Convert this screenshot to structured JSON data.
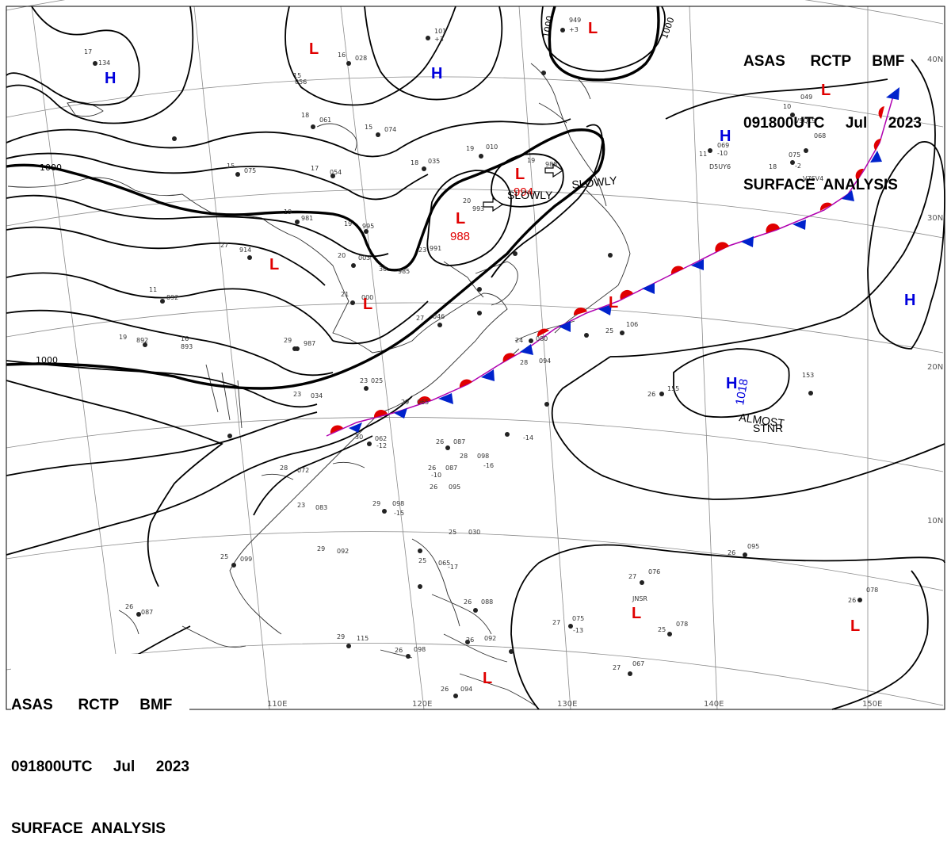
{
  "header": {
    "line1": "ASAS      RCTP     BMF",
    "line2": "091800UTC     Jul     2023",
    "line3": "SURFACE  ANALYSIS"
  },
  "grid_labels": {
    "lat": [
      "40N",
      "30N",
      "20N",
      "10N"
    ],
    "lon": [
      "110E",
      "120E",
      "130E",
      "140E",
      "150E"
    ]
  },
  "isobar_labels": [
    "1000",
    "1000",
    "1000",
    "1000"
  ],
  "pressure_systems": [
    {
      "letter": "L",
      "color": "#e00000"
    },
    {
      "letter": "L",
      "color": "#e00000",
      "value": "988"
    },
    {
      "letter": "L",
      "color": "#e00000",
      "value": "994"
    },
    {
      "letter": "L",
      "color": "#e00000"
    },
    {
      "letter": "L",
      "color": "#e00000"
    },
    {
      "letter": "L",
      "color": "#e00000"
    },
    {
      "letter": "L",
      "color": "#e00000"
    },
    {
      "letter": "L",
      "color": "#e00000"
    },
    {
      "letter": "L",
      "color": "#e00000"
    },
    {
      "letter": "L",
      "color": "#e00000"
    },
    {
      "letter": "L",
      "color": "#e00000"
    },
    {
      "letter": "L",
      "color": "#e00000"
    },
    {
      "letter": "H",
      "color": "#0000dd"
    },
    {
      "letter": "H",
      "color": "#0000dd"
    },
    {
      "letter": "H",
      "color": "#0000dd"
    },
    {
      "letter": "H",
      "color": "#0000dd"
    },
    {
      "letter": "H",
      "color": "#0000dd",
      "value": "1018"
    }
  ],
  "annotations": {
    "slowly_1": "SLOWLY",
    "slowly_2": "SLOWLY",
    "almost_1": "ALMOST",
    "almost_2": "STNR"
  },
  "stations": [
    "17",
    "134",
    "949",
    "+3",
    "101",
    "+3",
    "16",
    "028",
    "15",
    "056",
    "18",
    "061",
    "15",
    "074",
    "19",
    "010",
    "11",
    "069",
    "-10",
    "10",
    "049",
    "18",
    "075",
    "-2",
    "068",
    "VSQL9",
    "V7SV4",
    "D5UY6",
    "17",
    "054",
    "15",
    "075",
    "18",
    "035",
    "19",
    "988",
    "20",
    "993",
    "23",
    "991",
    "19",
    "995",
    "20",
    "003",
    "30",
    "985",
    "19",
    "981",
    "27",
    "914",
    "11",
    "892",
    "21",
    "000",
    "27",
    "046",
    "29",
    "987",
    "16",
    "893",
    "19",
    "892",
    "23",
    "034",
    "23",
    "025",
    "29",
    "065",
    "24",
    "080",
    "28",
    "094",
    "25",
    "106",
    "26",
    "155",
    "153",
    "30",
    "062",
    "26",
    "087",
    "28",
    "098",
    "26",
    "087",
    "26",
    "095",
    "29",
    "098",
    "28",
    "072",
    "23",
    "083",
    "25",
    "099",
    "29",
    "092",
    "25",
    "030",
    "25",
    "065",
    "26",
    "088",
    "26",
    "092",
    "26",
    "098",
    "29",
    "115",
    "26",
    "094",
    "27",
    "076",
    "JNSR",
    "27",
    "075",
    "25",
    "078",
    "27",
    "067",
    "26",
    "078",
    "26",
    "095",
    "26",
    "087",
    "-17",
    "-10",
    "-12",
    "-14",
    "-15",
    "-13",
    "-16"
  ]
}
